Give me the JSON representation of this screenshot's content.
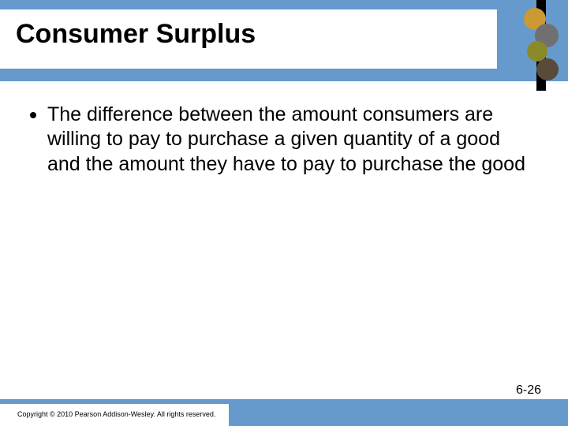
{
  "colors": {
    "band": "#6699cc",
    "background": "#ffffff",
    "text": "#000000"
  },
  "header": {
    "title": "Consumer Surplus",
    "title_fontsize": 34,
    "title_fontweight": "bold"
  },
  "corner_graphic": {
    "bar_color": "#000000",
    "blob_colors": [
      "#cc9933",
      "#707070",
      "#8a8a2a",
      "#5a4a3a"
    ]
  },
  "body": {
    "bullet_fontsize": 25,
    "bullets": [
      "The difference between the amount consumers are willing to pay to purchase a given quantity of a good and the amount they have to pay to purchase the good"
    ]
  },
  "footer": {
    "copyright": "Copyright © 2010 Pearson Addison-Wesley. All rights reserved.",
    "copyright_fontsize": 9,
    "page_number": "6-26",
    "page_number_fontsize": 16
  }
}
